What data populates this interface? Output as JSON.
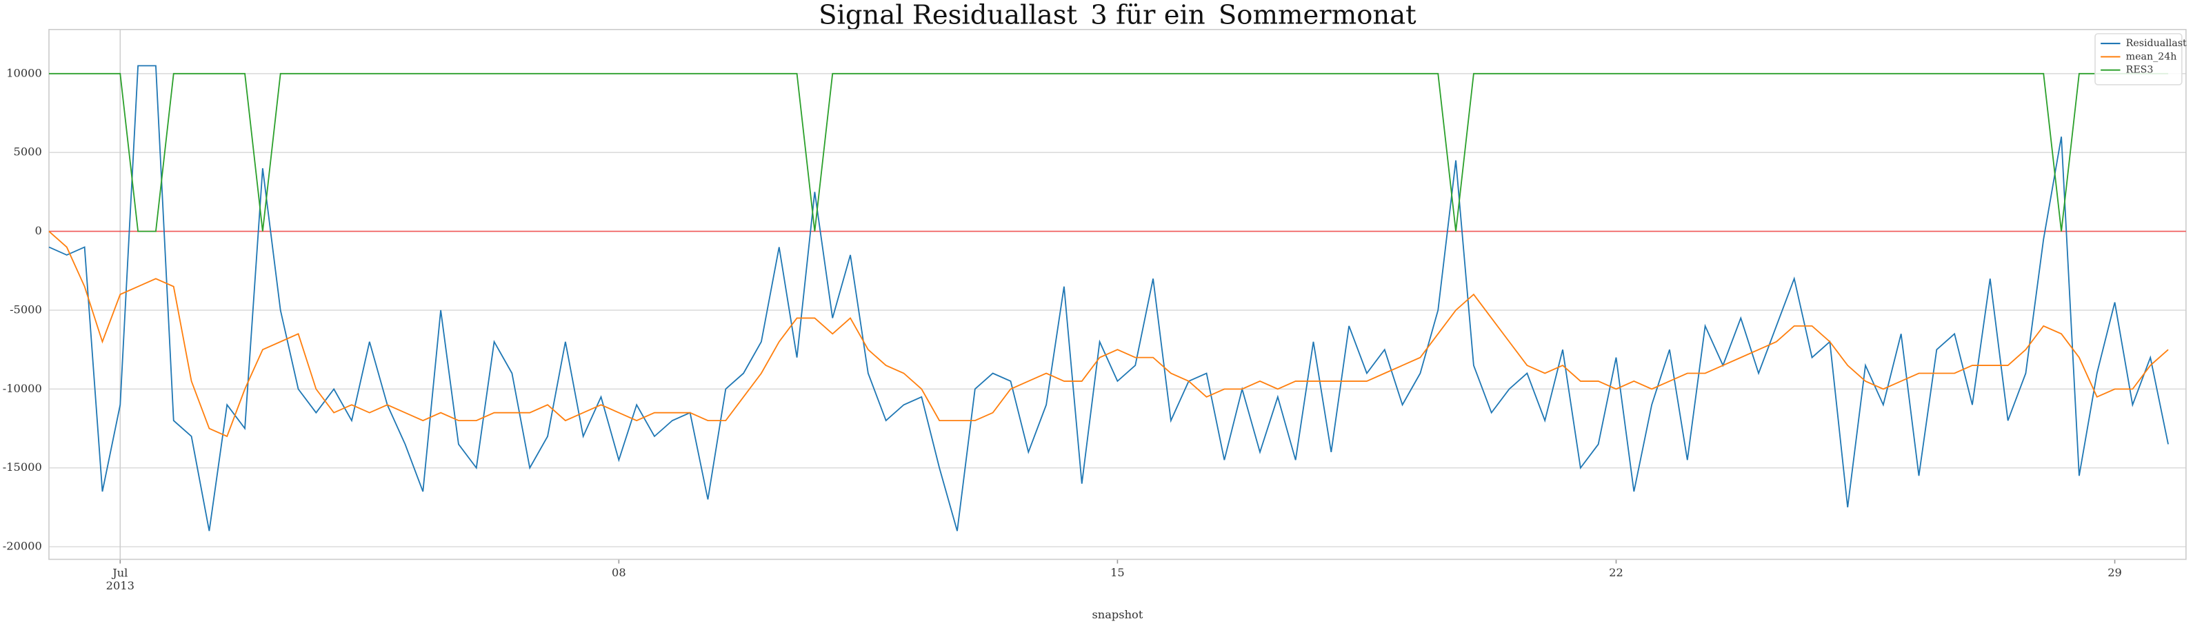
{
  "chart_data": {
    "type": "line",
    "title": "Signal Residuallast_3 für ein_Sommermonat",
    "xlabel": "snapshot",
    "categories": [
      null,
      null,
      null,
      null,
      "Jul\n2013",
      null,
      null,
      null,
      null,
      null,
      null,
      null,
      null,
      null,
      null,
      null,
      null,
      null,
      null,
      null,
      null,
      null,
      null,
      null,
      null,
      null,
      null,
      null,
      null,
      null,
      null,
      null,
      "08",
      null,
      null,
      null,
      null,
      null,
      null,
      null,
      null,
      null,
      null,
      null,
      null,
      null,
      null,
      null,
      null,
      null,
      null,
      null,
      null,
      null,
      null,
      null,
      null,
      null,
      null,
      null,
      "15",
      null,
      null,
      null,
      null,
      null,
      null,
      null,
      null,
      null,
      null,
      null,
      null,
      null,
      null,
      null,
      null,
      null,
      null,
      null,
      null,
      null,
      null,
      null,
      null,
      null,
      null,
      null,
      "22",
      null,
      null,
      null,
      null,
      null,
      null,
      null,
      null,
      null,
      null,
      null,
      null,
      null,
      null,
      null,
      null,
      null,
      null,
      null,
      null,
      null,
      null,
      null,
      null,
      null,
      null,
      null,
      "29",
      null,
      null,
      null
    ],
    "series": [
      {
        "name": "Residuallast",
        "color": "#1f77b4",
        "values": [
          -1000,
          -1500,
          -1000,
          -16500,
          -11000,
          10500,
          10500,
          -12000,
          -13000,
          -19000,
          -11000,
          -12500,
          4000,
          -5000,
          -10000,
          -11500,
          -10000,
          -12000,
          -7000,
          -11000,
          -13500,
          -16500,
          -5000,
          -13500,
          -15000,
          -7000,
          -9000,
          -15000,
          -13000,
          -7000,
          -13000,
          -10500,
          -14500,
          -11000,
          -13000,
          -12000,
          -11500,
          -17000,
          -10000,
          -9000,
          -7000,
          -1000,
          -8000,
          2500,
          -5500,
          -1500,
          -9000,
          -12000,
          -11000,
          -10500,
          -15000,
          -19000,
          -10000,
          -9000,
          -9500,
          -14000,
          -11000,
          -3500,
          -16000,
          -7000,
          -9500,
          -8500,
          -3000,
          -12000,
          -9500,
          -9000,
          -14500,
          -10000,
          -14000,
          -10500,
          -14500,
          -7000,
          -14000,
          -6000,
          -9000,
          -7500,
          -11000,
          -9000,
          -5000,
          4500,
          -8500,
          -11500,
          -10000,
          -9000,
          -12000,
          -7500,
          -15000,
          -13500,
          -8000,
          -16500,
          -11000,
          -7500,
          -14500,
          -6000,
          -8500,
          -5500,
          -9000,
          -6000,
          -3000,
          -8000,
          -7000,
          -17500,
          -8500,
          -11000,
          -6500,
          -15500,
          -7500,
          -6500,
          -11000,
          -3000,
          -12000,
          -9000,
          -500,
          6000,
          -15500,
          -9000,
          -4500,
          -11000,
          -8000,
          -13500
        ]
      },
      {
        "name": "mean_24h",
        "color": "#ff7f0e",
        "values": [
          0,
          -1000,
          -3500,
          -7000,
          -4000,
          -3500,
          -3000,
          -3500,
          -9500,
          -12500,
          -13000,
          -10000,
          -7500,
          -7000,
          -6500,
          -10000,
          -11500,
          -11000,
          -11500,
          -11000,
          -11500,
          -12000,
          -11500,
          -12000,
          -12000,
          -11500,
          -11500,
          -11500,
          -11000,
          -12000,
          -11500,
          -11000,
          -11500,
          -12000,
          -11500,
          -11500,
          -11500,
          -12000,
          -12000,
          -10500,
          -9000,
          -7000,
          -5500,
          -5500,
          -6500,
          -5500,
          -7500,
          -8500,
          -9000,
          -10000,
          -12000,
          -12000,
          -12000,
          -11500,
          -10000,
          -9500,
          -9000,
          -9500,
          -9500,
          -8000,
          -7500,
          -8000,
          -8000,
          -9000,
          -9500,
          -10500,
          -10000,
          -10000,
          -9500,
          -10000,
          -9500,
          -9500,
          -9500,
          -9500,
          -9500,
          -9000,
          -8500,
          -8000,
          -6500,
          -5000,
          -4000,
          -5500,
          -7000,
          -8500,
          -9000,
          -8500,
          -9500,
          -9500,
          -10000,
          -9500,
          -10000,
          -9500,
          -9000,
          -9000,
          -8500,
          -8000,
          -7500,
          -7000,
          -6000,
          -6000,
          -7000,
          -8500,
          -9500,
          -10000,
          -9500,
          -9000,
          -9000,
          -9000,
          -8500,
          -8500,
          -8500,
          -7500,
          -6000,
          -6500,
          -8000,
          -10500,
          -10000,
          -10000,
          -8500,
          -7500
        ]
      },
      {
        "name": "RES3",
        "color": "#2ca02c",
        "values": [
          10000,
          10000,
          10000,
          10000,
          10000,
          0,
          0,
          10000,
          10000,
          10000,
          10000,
          10000,
          0,
          10000,
          10000,
          10000,
          10000,
          10000,
          10000,
          10000,
          10000,
          10000,
          10000,
          10000,
          10000,
          10000,
          10000,
          10000,
          10000,
          10000,
          10000,
          10000,
          10000,
          10000,
          10000,
          10000,
          10000,
          10000,
          10000,
          10000,
          10000,
          10000,
          10000,
          0,
          10000,
          10000,
          10000,
          10000,
          10000,
          10000,
          10000,
          10000,
          10000,
          10000,
          10000,
          10000,
          10000,
          10000,
          10000,
          10000,
          10000,
          10000,
          10000,
          10000,
          10000,
          10000,
          10000,
          10000,
          10000,
          10000,
          10000,
          10000,
          10000,
          10000,
          10000,
          10000,
          10000,
          10000,
          10000,
          0,
          10000,
          10000,
          10000,
          10000,
          10000,
          10000,
          10000,
          10000,
          10000,
          10000,
          10000,
          10000,
          10000,
          10000,
          10000,
          10000,
          10000,
          10000,
          10000,
          10000,
          10000,
          10000,
          10000,
          10000,
          10000,
          10000,
          10000,
          10000,
          10000,
          10000,
          10000,
          10000,
          10000,
          0,
          10000,
          10000,
          10000,
          10000,
          10000,
          10000
        ]
      }
    ],
    "reference_line": {
      "value": 0,
      "color": "#ff0000"
    },
    "ylim": [
      -20800,
      12800
    ],
    "yticks": [
      -20000,
      -15000,
      -10000,
      -5000,
      0,
      5000,
      10000
    ],
    "grid": true,
    "legend": "upper right"
  }
}
